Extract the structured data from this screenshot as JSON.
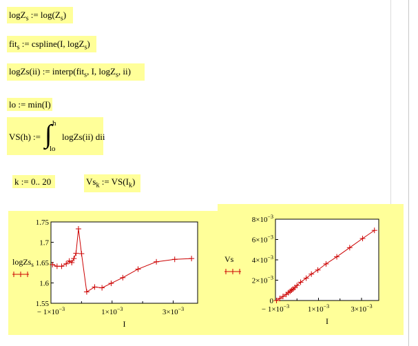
{
  "equations": {
    "eq1": "logZ",
    "eq1_sub": "s",
    "eq1_rhs": ":= log(Z",
    "eq1_rhs_sub": "s",
    "eq1_close": ")",
    "eq2": "fit",
    "eq2_sub": "s",
    "eq2_rhs": ":= cspline(I, logZ",
    "eq2_rhs_sub": "s",
    "eq2_close": ")",
    "eq3": "logZs(ii) := interp(fit",
    "eq3_sub": "s",
    "eq3_mid": ", I, logZ",
    "eq3_sub2": "s",
    "eq3_close": ", ii)",
    "eq4": "lo := min(I)",
    "eq5_lhs": "VS(h) :=",
    "eq5_upper": "h",
    "eq5_lower": "lo",
    "eq5_body": "logZs(ii) dii",
    "eq6": "k := 0.. 20",
    "eq7_lhs": "Vs",
    "eq7_sub": "k",
    "eq7_rhs": ":= VS(I",
    "eq7_rhs_sub": "k",
    "eq7_close": ")"
  },
  "chart_data": [
    {
      "type": "line",
      "marker": "+",
      "color": "#cc0000",
      "ylabel": "logZs",
      "xlabel": "I",
      "x_ticks": [
        "− 1×10",
        "1×10",
        "3×10"
      ],
      "x_tick_exp": "−3",
      "y_ticks": [
        "1.75",
        "1.7",
        "1.65",
        "1.6",
        "1.55"
      ],
      "xlim": [
        -0.001,
        0.0038
      ],
      "ylim": [
        1.55,
        1.75
      ],
      "x": [
        -0.00095,
        -0.0008,
        -0.00065,
        -0.0005,
        -0.0004,
        -0.00032,
        -0.00025,
        -0.00018,
        -0.0001,
        0.0,
        0.00017,
        0.00043,
        0.00067,
        0.00097,
        0.00135,
        0.00185,
        0.00245,
        0.00305,
        0.0036
      ],
      "y": [
        1.645,
        1.641,
        1.641,
        1.647,
        1.654,
        1.65,
        1.66,
        1.673,
        1.733,
        1.672,
        1.578,
        1.59,
        1.588,
        1.599,
        1.613,
        1.634,
        1.652,
        1.658,
        1.66
      ]
    },
    {
      "type": "line",
      "marker": "+",
      "color": "#cc0000",
      "ylabel": "Vs",
      "xlabel": "I",
      "x_ticks": [
        "− 1×10",
        "1×10",
        "3×10"
      ],
      "x_tick_exp": "−3",
      "y_ticks": [
        "8×10",
        "6×10",
        "4×10",
        "2×10",
        "0"
      ],
      "y_tick_exp": "−3",
      "xlim": [
        -0.001,
        0.0038
      ],
      "ylim": [
        0,
        0.008
      ],
      "x": [
        -0.00095,
        -0.0008,
        -0.00065,
        -0.0005,
        -0.0004,
        -0.00032,
        -0.00025,
        -0.00018,
        -0.0001,
        0.0,
        0.00017,
        0.00043,
        0.00067,
        0.00097,
        0.00135,
        0.00185,
        0.00245,
        0.00305,
        0.0036
      ],
      "y": [
        0.0,
        0.0002,
        0.0004,
        0.0006,
        0.00077,
        0.0009,
        0.00102,
        0.00113,
        0.00128,
        0.00148,
        0.0018,
        0.0022,
        0.0026,
        0.003,
        0.0036,
        0.0043,
        0.0052,
        0.0061,
        0.0069
      ]
    }
  ]
}
